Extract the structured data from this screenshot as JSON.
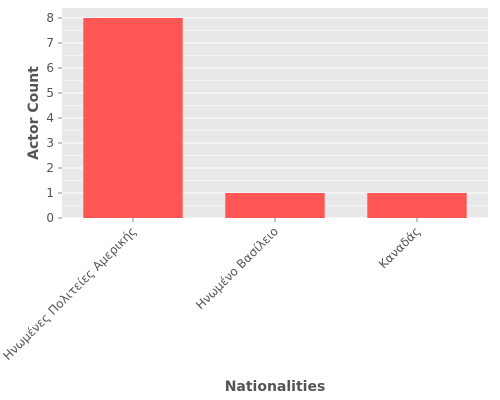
{
  "chart_data": {
    "type": "bar",
    "categories": [
      "Ηνωμένες Πολιτείες Αμερικής",
      "Ηνωμένο Βασίλειο",
      "Καναδάς"
    ],
    "values": [
      8,
      1,
      1
    ],
    "xlabel": "Nationalities",
    "ylabel": "Actor Count",
    "ylim": [
      0,
      8.4
    ],
    "yticks": [
      0,
      1,
      2,
      3,
      4,
      5,
      6,
      7,
      8
    ],
    "grid": true,
    "legend": "none",
    "colors": {
      "bar": "#FF5555",
      "plot_background": "#E8E8E8",
      "grid": "#FFFFFF",
      "text": "#555555"
    }
  }
}
